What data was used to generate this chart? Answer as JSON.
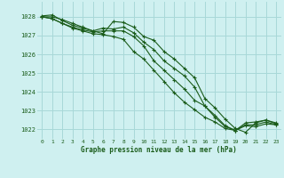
{
  "title": "Graphe pression niveau de la mer (hPa)",
  "bg_color": "#cff0f0",
  "grid_color": "#a8d8d8",
  "line_color": "#1a5c1a",
  "marker_color": "#1a5c1a",
  "xlim": [
    -0.5,
    23.5
  ],
  "ylim": [
    1021.5,
    1028.8
  ],
  "yticks": [
    1022,
    1023,
    1024,
    1025,
    1026,
    1027,
    1028
  ],
  "xticks": [
    0,
    1,
    2,
    3,
    4,
    5,
    6,
    7,
    8,
    9,
    10,
    11,
    12,
    13,
    14,
    15,
    16,
    17,
    18,
    19,
    20,
    21,
    22,
    23
  ],
  "series": [
    [
      1028.0,
      1028.0,
      1027.85,
      1027.65,
      1027.45,
      1027.25,
      1027.1,
      1027.75,
      1027.7,
      1027.45,
      1026.95,
      1026.75,
      1026.15,
      1025.75,
      1025.25,
      1024.75,
      1023.65,
      1023.15,
      1022.55,
      1022.05,
      1021.85,
      1022.35,
      1022.5,
      1022.35
    ],
    [
      1028.05,
      1028.1,
      1027.8,
      1027.55,
      1027.4,
      1027.25,
      1027.4,
      1027.35,
      1027.45,
      1027.15,
      1026.65,
      1026.25,
      1025.65,
      1025.25,
      1024.85,
      1024.25,
      1023.25,
      1022.75,
      1022.2,
      1021.95,
      1022.35,
      1022.4,
      1022.5,
      1022.3
    ],
    [
      1028.0,
      1027.9,
      1027.65,
      1027.45,
      1027.3,
      1027.2,
      1027.25,
      1027.25,
      1027.25,
      1026.95,
      1026.45,
      1025.65,
      1025.15,
      1024.65,
      1024.15,
      1023.55,
      1023.25,
      1022.65,
      1022.15,
      1021.95,
      1022.25,
      1022.25,
      1022.4,
      1022.25
    ],
    [
      1028.0,
      1027.9,
      1027.65,
      1027.4,
      1027.25,
      1027.1,
      1027.05,
      1026.95,
      1026.8,
      1026.15,
      1025.75,
      1025.15,
      1024.55,
      1023.95,
      1023.45,
      1023.05,
      1022.65,
      1022.4,
      1022.05,
      1021.95,
      1022.2,
      1022.15,
      1022.3,
      1022.25
    ]
  ]
}
